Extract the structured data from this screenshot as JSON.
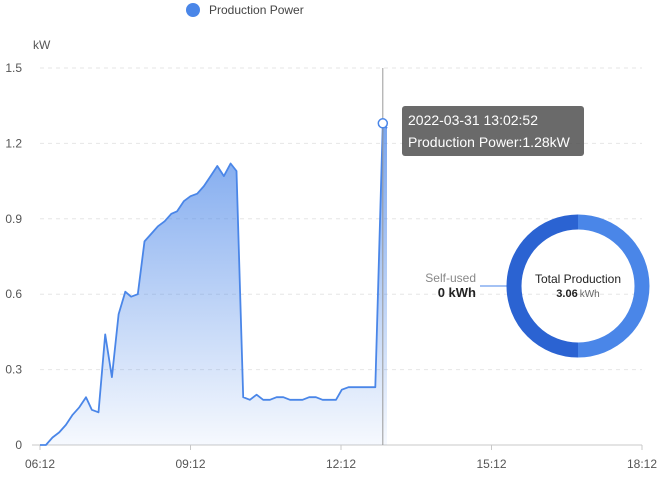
{
  "legend": {
    "label": "Production Power",
    "color": "#4a86e8"
  },
  "tooltip": {
    "time": "2022-03-31 13:02:52",
    "text": "Production Power:1.28kW"
  },
  "donut": {
    "self_used_label": "Self-used",
    "self_used_value": "0",
    "self_used_unit": "kWh",
    "total_label": "Total Production",
    "total_value": "3.06",
    "total_unit": "kWh",
    "color_dark": "#2b63d2",
    "color_light": "#4a86e8"
  },
  "chart_data": {
    "type": "area",
    "title": "",
    "ylabel": "kW",
    "xlabel": "",
    "xlim": [
      "06:12",
      "18:12"
    ],
    "ylim": [
      0,
      1.5
    ],
    "grid": true,
    "legend_position": "top",
    "x_ticks": [
      "06:12",
      "09:12",
      "12:12",
      "15:12",
      "18:12"
    ],
    "y_ticks": [
      "0",
      "0.3",
      "0.6",
      "0.9",
      "1.2",
      "1.5"
    ],
    "cursor_x": "13:02",
    "highlight": {
      "x": "13:02",
      "y": 1.28
    },
    "series": [
      {
        "name": "Production Power",
        "color": "#4a86e8",
        "x": [
          "06:12",
          "06:19",
          "06:27",
          "06:35",
          "06:43",
          "06:51",
          "06:59",
          "07:07",
          "07:14",
          "07:22",
          "07:30",
          "07:38",
          "07:46",
          "07:54",
          "08:01",
          "08:09",
          "08:17",
          "08:25",
          "08:33",
          "08:41",
          "08:49",
          "08:56",
          "09:04",
          "09:12",
          "09:20",
          "09:28",
          "09:36",
          "09:44",
          "09:52",
          "10:00",
          "10:07",
          "10:15",
          "10:23",
          "10:31",
          "10:39",
          "10:47",
          "10:55",
          "11:03",
          "11:11",
          "11:18",
          "11:26",
          "11:34",
          "11:42",
          "11:50",
          "11:58",
          "12:06",
          "12:13",
          "12:21",
          "12:29",
          "12:37",
          "12:45",
          "12:53",
          "13:02",
          "13:07"
        ],
        "values": [
          0,
          0,
          0.03,
          0.05,
          0.08,
          0.12,
          0.15,
          0.19,
          0.14,
          0.13,
          0.44,
          0.27,
          0.52,
          0.61,
          0.59,
          0.6,
          0.81,
          0.84,
          0.87,
          0.89,
          0.92,
          0.93,
          0.97,
          0.99,
          1.0,
          1.03,
          1.07,
          1.11,
          1.07,
          1.12,
          1.09,
          0.19,
          0.18,
          0.2,
          0.18,
          0.18,
          0.19,
          0.19,
          0.18,
          0.18,
          0.18,
          0.19,
          0.19,
          0.18,
          0.18,
          0.18,
          0.22,
          0.23,
          0.23,
          0.23,
          0.23,
          0.23,
          1.28,
          1.26
        ]
      }
    ]
  }
}
